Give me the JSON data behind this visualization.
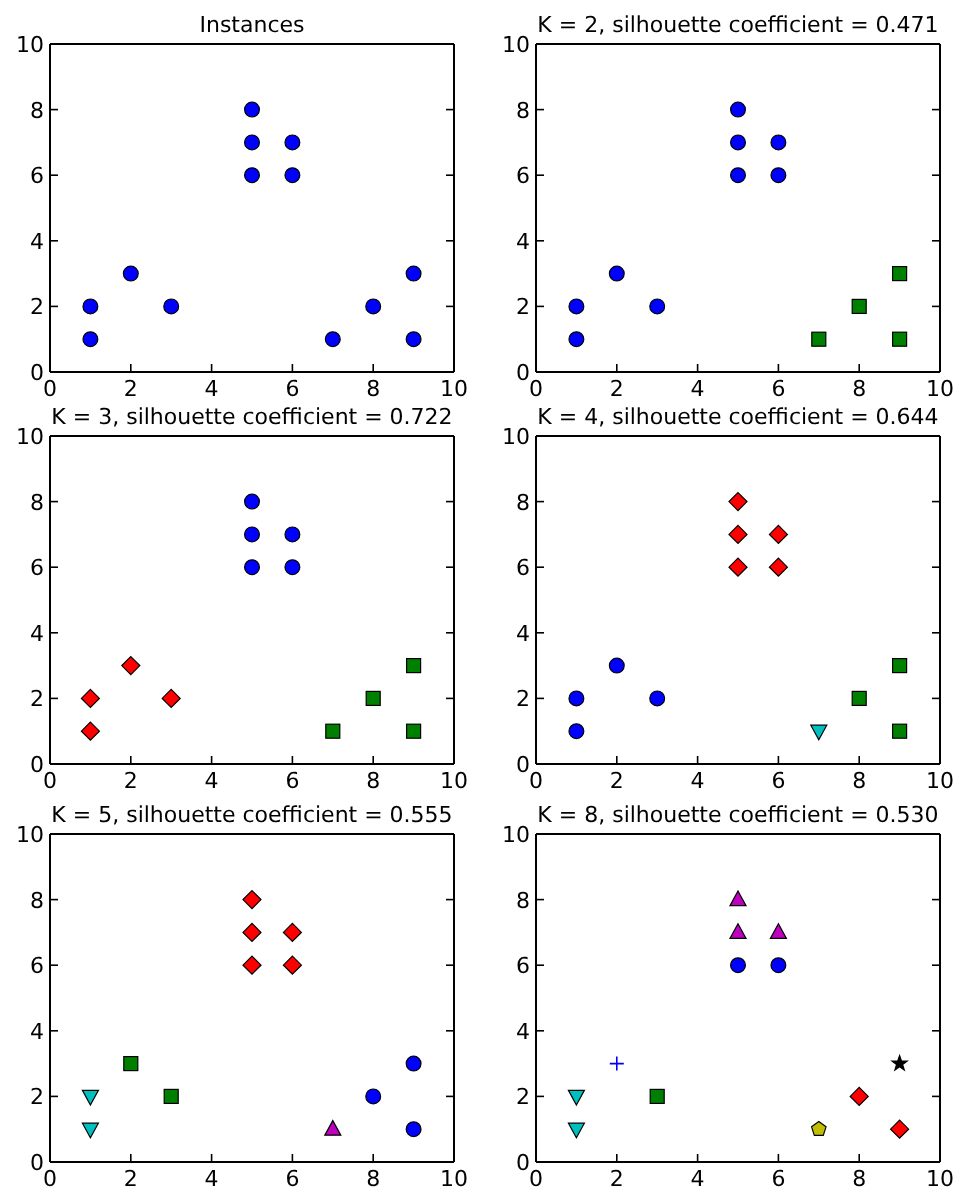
{
  "chart_data": [
    {
      "type": "scatter",
      "title": "Instances",
      "xlim": [
        0,
        10
      ],
      "ylim": [
        0,
        10
      ],
      "xticks": [
        0,
        2,
        4,
        6,
        8,
        10
      ],
      "yticks": [
        0,
        2,
        4,
        6,
        8,
        10
      ],
      "series": [
        {
          "color": "#0000ff",
          "marker": "circle",
          "x": [
            1,
            1,
            2,
            3,
            5,
            5,
            5,
            6,
            6,
            7,
            8,
            9,
            9
          ],
          "values": [
            1,
            2,
            3,
            2,
            6,
            7,
            8,
            6,
            7,
            1,
            2,
            1,
            3
          ]
        }
      ]
    },
    {
      "type": "scatter",
      "title": "K = 2, silhouette coefficient = 0.471",
      "xlim": [
        0,
        10
      ],
      "ylim": [
        0,
        10
      ],
      "xticks": [
        0,
        2,
        4,
        6,
        8,
        10
      ],
      "yticks": [
        0,
        2,
        4,
        6,
        8,
        10
      ],
      "series": [
        {
          "color": "#0000ff",
          "marker": "circle",
          "x": [
            1,
            1,
            2,
            3,
            5,
            5,
            5,
            6,
            6
          ],
          "values": [
            1,
            2,
            3,
            2,
            6,
            7,
            8,
            6,
            7
          ]
        },
        {
          "color": "#008000",
          "marker": "square",
          "x": [
            7,
            8,
            9,
            9
          ],
          "values": [
            1,
            2,
            1,
            3
          ]
        }
      ]
    },
    {
      "type": "scatter",
      "title": "K = 3, silhouette coefficient = 0.722",
      "xlim": [
        0,
        10
      ],
      "ylim": [
        0,
        10
      ],
      "xticks": [
        0,
        2,
        4,
        6,
        8,
        10
      ],
      "yticks": [
        0,
        2,
        4,
        6,
        8,
        10
      ],
      "series": [
        {
          "color": "#0000ff",
          "marker": "circle",
          "x": [
            5,
            5,
            5,
            6,
            6
          ],
          "values": [
            6,
            7,
            8,
            6,
            7
          ]
        },
        {
          "color": "#008000",
          "marker": "square",
          "x": [
            7,
            8,
            9,
            9
          ],
          "values": [
            1,
            2,
            1,
            3
          ]
        },
        {
          "color": "#ff0000",
          "marker": "diamond",
          "x": [
            1,
            1,
            2,
            3
          ],
          "values": [
            1,
            2,
            3,
            2
          ]
        }
      ]
    },
    {
      "type": "scatter",
      "title": "K = 4, silhouette coefficient = 0.644",
      "xlim": [
        0,
        10
      ],
      "ylim": [
        0,
        10
      ],
      "xticks": [
        0,
        2,
        4,
        6,
        8,
        10
      ],
      "yticks": [
        0,
        2,
        4,
        6,
        8,
        10
      ],
      "series": [
        {
          "color": "#0000ff",
          "marker": "circle",
          "x": [
            1,
            1,
            2,
            3
          ],
          "values": [
            1,
            2,
            3,
            2
          ]
        },
        {
          "color": "#008000",
          "marker": "square",
          "x": [
            8,
            9,
            9
          ],
          "values": [
            2,
            1,
            3
          ]
        },
        {
          "color": "#ff0000",
          "marker": "diamond",
          "x": [
            5,
            5,
            5,
            6,
            6
          ],
          "values": [
            6,
            7,
            8,
            6,
            7
          ]
        },
        {
          "color": "#00bfbf",
          "marker": "triangle-down",
          "x": [
            7
          ],
          "values": [
            1
          ]
        }
      ]
    },
    {
      "type": "scatter",
      "title": "K = 5, silhouette coefficient = 0.555",
      "xlim": [
        0,
        10
      ],
      "ylim": [
        0,
        10
      ],
      "xticks": [
        0,
        2,
        4,
        6,
        8,
        10
      ],
      "yticks": [
        0,
        2,
        4,
        6,
        8,
        10
      ],
      "series": [
        {
          "color": "#0000ff",
          "marker": "circle",
          "x": [
            8,
            9,
            9
          ],
          "values": [
            2,
            1,
            3
          ]
        },
        {
          "color": "#008000",
          "marker": "square",
          "x": [
            2,
            3
          ],
          "values": [
            3,
            2
          ]
        },
        {
          "color": "#ff0000",
          "marker": "diamond",
          "x": [
            5,
            5,
            5,
            6,
            6
          ],
          "values": [
            6,
            7,
            8,
            6,
            7
          ]
        },
        {
          "color": "#00bfbf",
          "marker": "triangle-down",
          "x": [
            1,
            1
          ],
          "values": [
            1,
            2
          ]
        },
        {
          "color": "#bf00bf",
          "marker": "triangle",
          "x": [
            7
          ],
          "values": [
            1
          ]
        }
      ]
    },
    {
      "type": "scatter",
      "title": "K = 8, silhouette coefficient = 0.530",
      "xlim": [
        0,
        10
      ],
      "ylim": [
        0,
        10
      ],
      "xticks": [
        0,
        2,
        4,
        6,
        8,
        10
      ],
      "yticks": [
        0,
        2,
        4,
        6,
        8,
        10
      ],
      "series": [
        {
          "color": "#0000ff",
          "marker": "circle",
          "x": [
            5,
            6
          ],
          "values": [
            6,
            6
          ]
        },
        {
          "color": "#008000",
          "marker": "square",
          "x": [
            3
          ],
          "values": [
            2
          ]
        },
        {
          "color": "#ff0000",
          "marker": "diamond",
          "x": [
            8,
            9
          ],
          "values": [
            2,
            1
          ]
        },
        {
          "color": "#00bfbf",
          "marker": "triangle-down",
          "x": [
            1,
            1
          ],
          "values": [
            1,
            2
          ]
        },
        {
          "color": "#bf00bf",
          "marker": "triangle",
          "x": [
            5,
            5,
            6
          ],
          "values": [
            7,
            8,
            7
          ]
        },
        {
          "color": "#bfbf00",
          "x": [
            7
          ],
          "values": [
            1
          ]
        },
        {
          "color": "#000000",
          "marker": "star",
          "x": [
            9
          ],
          "values": [
            3
          ]
        },
        {
          "color": "#0000ff",
          "marker": "cross",
          "x": [
            2
          ],
          "values": [
            3
          ]
        }
      ]
    }
  ]
}
